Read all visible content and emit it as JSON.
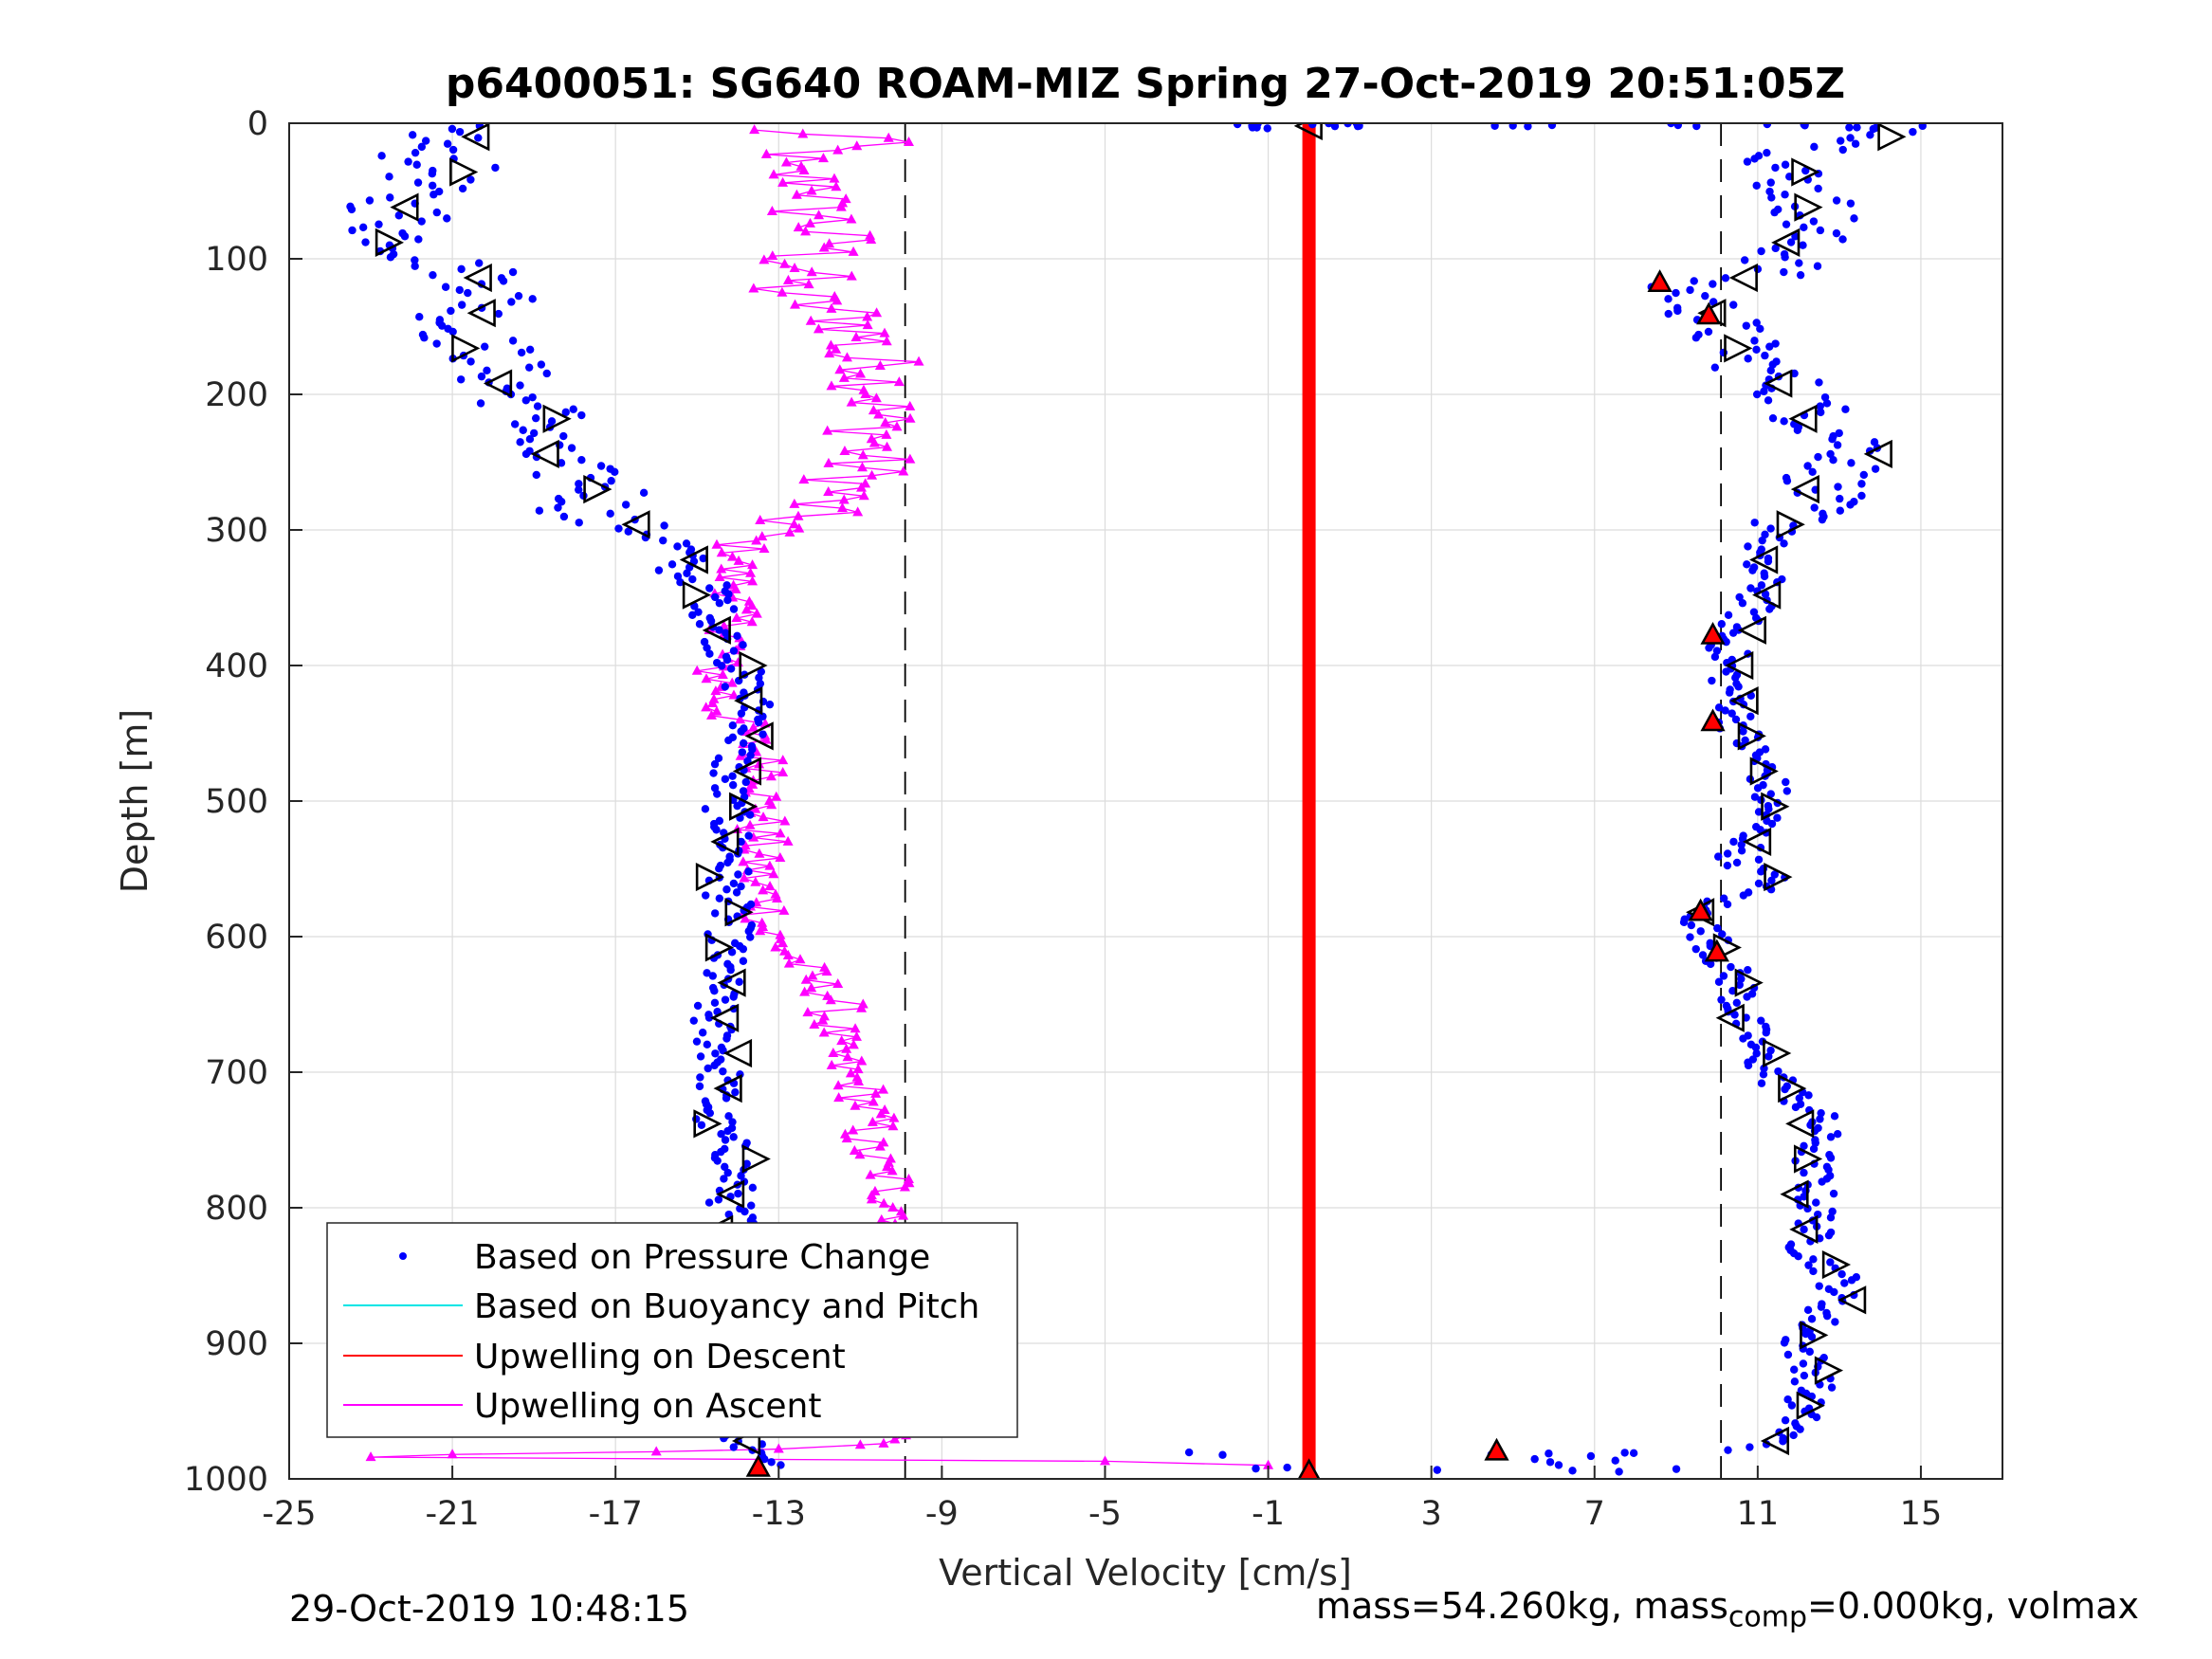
{
  "chart_data": {
    "type": "scatter",
    "title": "p6400051: SG640 ROAM-MIZ Spring 27-Oct-2019 20:51:05Z",
    "xlabel": "Vertical Velocity [cm/s]",
    "ylabel": "Depth [m]",
    "xlim": [
      -25,
      17
    ],
    "ylim": [
      1000,
      0
    ],
    "y_reversed": true,
    "grid": true,
    "legend_position": "bottom-left",
    "xticks": [
      "-25",
      "-21",
      "-17",
      "-13",
      "-9",
      "-5",
      "-1",
      "3",
      "7",
      "11",
      "15"
    ],
    "yticks": [
      "0",
      "100",
      "200",
      "300",
      "400",
      "500",
      "600",
      "700",
      "800",
      "900",
      "1000"
    ],
    "reference_lines": [
      {
        "style": "dashed",
        "color": "#000000",
        "x": -9.9
      },
      {
        "style": "dashed",
        "color": "#000000",
        "x": 10.1
      }
    ],
    "series": [
      {
        "name": "Based on Pressure Change",
        "color": "#0000ff",
        "marker": "dot",
        "descent_profile": [
          [
            2,
            -21.5
          ],
          [
            10,
            -21
          ],
          [
            20,
            -22
          ],
          [
            30,
            -21
          ],
          [
            40,
            -21.5
          ],
          [
            50,
            -22
          ],
          [
            60,
            -22.5
          ],
          [
            70,
            -22
          ],
          [
            80,
            -22.5
          ],
          [
            90,
            -22
          ],
          [
            100,
            -21.5
          ],
          [
            110,
            -20.5
          ],
          [
            120,
            -20
          ],
          [
            130,
            -19.8
          ],
          [
            140,
            -20.5
          ],
          [
            150,
            -21
          ],
          [
            160,
            -20.5
          ],
          [
            170,
            -20
          ],
          [
            180,
            -19.8
          ],
          [
            190,
            -19.8
          ],
          [
            200,
            -19.5
          ],
          [
            210,
            -19
          ],
          [
            220,
            -18.5
          ],
          [
            230,
            -19
          ],
          [
            240,
            -19.2
          ],
          [
            250,
            -18.5
          ],
          [
            260,
            -18
          ],
          [
            270,
            -17
          ],
          [
            280,
            -17.5
          ],
          [
            290,
            -17.8
          ],
          [
            300,
            -16.5
          ],
          [
            310,
            -15.5
          ],
          [
            320,
            -15.3
          ],
          [
            330,
            -15.5
          ],
          [
            340,
            -14.8
          ],
          [
            350,
            -14.5
          ],
          [
            360,
            -14.6
          ],
          [
            370,
            -14.5
          ],
          [
            380,
            -14.3
          ],
          [
            390,
            -14.2
          ],
          [
            400,
            -14
          ],
          [
            420,
            -13.8
          ],
          [
            440,
            -13.5
          ],
          [
            460,
            -14
          ],
          [
            480,
            -14.2
          ],
          [
            500,
            -14.3
          ],
          [
            520,
            -14.2
          ],
          [
            540,
            -14.1
          ],
          [
            560,
            -14.3
          ],
          [
            580,
            -14.2
          ],
          [
            600,
            -14.2
          ],
          [
            620,
            -14.4
          ],
          [
            640,
            -14.5
          ],
          [
            660,
            -14.7
          ],
          [
            680,
            -14.5
          ],
          [
            700,
            -14.4
          ],
          [
            720,
            -14.6
          ],
          [
            740,
            -14.6
          ],
          [
            760,
            -14.1
          ],
          [
            780,
            -14.1
          ],
          [
            800,
            -14.2
          ],
          [
            820,
            -13.9
          ],
          [
            840,
            -13.7
          ],
          [
            860,
            -13.6
          ],
          [
            880,
            -13.9
          ],
          [
            900,
            -14.1
          ],
          [
            920,
            -14.2
          ],
          [
            940,
            -14
          ],
          [
            960,
            -14
          ],
          [
            980,
            -13.7
          ],
          [
            992,
            -13.3
          ]
        ],
        "ascent_profile": [
          [
            992,
            7
          ],
          [
            985,
            5
          ],
          [
            978,
            11
          ],
          [
            970,
            11.5
          ],
          [
            960,
            12
          ],
          [
            950,
            12
          ],
          [
            940,
            12.2
          ],
          [
            930,
            12.4
          ],
          [
            920,
            12.4
          ],
          [
            910,
            12.2
          ],
          [
            900,
            12
          ],
          [
            890,
            12.3
          ],
          [
            880,
            12.6
          ],
          [
            870,
            12.8
          ],
          [
            860,
            13
          ],
          [
            850,
            13
          ],
          [
            840,
            12.5
          ],
          [
            830,
            12.2
          ],
          [
            820,
            12.3
          ],
          [
            810,
            12.5
          ],
          [
            800,
            12.4
          ],
          [
            790,
            12.4
          ],
          [
            780,
            12.4
          ],
          [
            770,
            12.3
          ],
          [
            760,
            12.4
          ],
          [
            750,
            12.5
          ],
          [
            740,
            12.5
          ],
          [
            730,
            12.4
          ],
          [
            720,
            12
          ],
          [
            710,
            11.6
          ],
          [
            700,
            11.3
          ],
          [
            690,
            11
          ],
          [
            680,
            10.9
          ],
          [
            670,
            10.8
          ],
          [
            660,
            10.6
          ],
          [
            650,
            10.5
          ],
          [
            640,
            10.6
          ],
          [
            630,
            10.4
          ],
          [
            620,
            10.2
          ],
          [
            610,
            10
          ],
          [
            600,
            9.8
          ],
          [
            590,
            9.6
          ],
          [
            580,
            9.6
          ],
          [
            570,
            10.4
          ],
          [
            560,
            11.5
          ],
          [
            550,
            10.8
          ],
          [
            540,
            10.5
          ],
          [
            530,
            10.8
          ],
          [
            520,
            11
          ],
          [
            510,
            11.2
          ],
          [
            500,
            11.2
          ],
          [
            490,
            11.3
          ],
          [
            480,
            11.2
          ],
          [
            470,
            11
          ],
          [
            460,
            10.8
          ],
          [
            450,
            10.6
          ],
          [
            440,
            10.5
          ],
          [
            430,
            10.5
          ],
          [
            420,
            10.4
          ],
          [
            410,
            10.3
          ],
          [
            400,
            10.2
          ],
          [
            390,
            10.3
          ],
          [
            380,
            10.2
          ],
          [
            370,
            10.5
          ],
          [
            360,
            10.8
          ],
          [
            350,
            11
          ],
          [
            340,
            11.2
          ],
          [
            330,
            11
          ],
          [
            320,
            10.8
          ],
          [
            310,
            11.2
          ],
          [
            300,
            11.8
          ],
          [
            290,
            12
          ],
          [
            280,
            12.3
          ],
          [
            270,
            12.6
          ],
          [
            260,
            12.8
          ],
          [
            250,
            13.3
          ],
          [
            240,
            13.6
          ],
          [
            230,
            13
          ],
          [
            220,
            12.5
          ],
          [
            210,
            12.2
          ],
          [
            200,
            12
          ],
          [
            190,
            11.5
          ],
          [
            180,
            11
          ],
          [
            170,
            10.8
          ],
          [
            160,
            10.3
          ],
          [
            150,
            10.1
          ],
          [
            140,
            9.8
          ],
          [
            130,
            9.5
          ],
          [
            120,
            9
          ],
          [
            110,
            11.5
          ],
          [
            100,
            11.7
          ],
          [
            90,
            12
          ],
          [
            80,
            12.2
          ],
          [
            70,
            12.5
          ],
          [
            60,
            12.4
          ],
          [
            50,
            12
          ],
          [
            40,
            11.8
          ],
          [
            30,
            11.5
          ],
          [
            20,
            12.5
          ],
          [
            10,
            14.5
          ],
          [
            2,
            15
          ]
        ]
      },
      {
        "name": "Based on Buoyancy and Pitch",
        "color": "#00e5e5",
        "marker": "line"
      },
      {
        "name": "Upwelling on Descent",
        "color": "#ff0000",
        "marker": "line",
        "x_constant": 0,
        "depth_range": [
          0,
          995
        ]
      },
      {
        "name": "Upwelling on Ascent",
        "color": "#ff00ff",
        "marker": "triangle",
        "profile": [
          [
            5,
            -14
          ],
          [
            10,
            -10.5
          ],
          [
            20,
            -12
          ],
          [
            30,
            -13.5
          ],
          [
            40,
            -12.5
          ],
          [
            50,
            -11.5
          ],
          [
            60,
            -12.5
          ],
          [
            70,
            -11.8
          ],
          [
            80,
            -12
          ],
          [
            90,
            -11.5
          ],
          [
            100,
            -12.5
          ],
          [
            110,
            -12.2
          ],
          [
            120,
            -13
          ],
          [
            130,
            -12.5
          ],
          [
            140,
            -11.5
          ],
          [
            150,
            -11
          ],
          [
            160,
            -10.8
          ],
          [
            170,
            -11.5
          ],
          [
            180,
            -10.2
          ],
          [
            190,
            -10.5
          ],
          [
            200,
            -10.3
          ],
          [
            210,
            -10.6
          ],
          [
            220,
            -10.7
          ],
          [
            230,
            -10.5
          ],
          [
            240,
            -10.8
          ],
          [
            250,
            -11
          ],
          [
            260,
            -11
          ],
          [
            270,
            -11.4
          ],
          [
            280,
            -12
          ],
          [
            290,
            -12.5
          ],
          [
            300,
            -13
          ],
          [
            310,
            -14
          ],
          [
            320,
            -13.8
          ],
          [
            330,
            -14.2
          ],
          [
            340,
            -14
          ],
          [
            350,
            -13.9
          ],
          [
            360,
            -14.2
          ],
          [
            370,
            -14.1
          ],
          [
            380,
            -14
          ],
          [
            390,
            -14.3
          ],
          [
            400,
            -14.6
          ],
          [
            410,
            -14.4
          ],
          [
            420,
            -14.3
          ],
          [
            430,
            -14.5
          ],
          [
            440,
            -14
          ],
          [
            450,
            -13.8
          ],
          [
            460,
            -13.6
          ],
          [
            470,
            -13.4
          ],
          [
            480,
            -13
          ],
          [
            490,
            -13.2
          ],
          [
            500,
            -13.5
          ],
          [
            510,
            -13.3
          ],
          [
            520,
            -13.5
          ],
          [
            530,
            -13.4
          ],
          [
            540,
            -13.6
          ],
          [
            550,
            -13.5
          ],
          [
            560,
            -13.6
          ],
          [
            570,
            -13.3
          ],
          [
            580,
            -13.2
          ],
          [
            590,
            -13.4
          ],
          [
            600,
            -13.2
          ],
          [
            610,
            -12.8
          ],
          [
            620,
            -12.5
          ],
          [
            630,
            -12.3
          ],
          [
            640,
            -11.8
          ],
          [
            650,
            -11.5
          ],
          [
            660,
            -11.8
          ],
          [
            670,
            -11.6
          ],
          [
            680,
            -11.8
          ],
          [
            690,
            -11.5
          ],
          [
            700,
            -11.4
          ],
          [
            710,
            -11
          ],
          [
            720,
            -10.9
          ],
          [
            730,
            -10.8
          ],
          [
            740,
            -10.7
          ],
          [
            750,
            -11
          ],
          [
            760,
            -10.8
          ],
          [
            770,
            -10.6
          ],
          [
            780,
            -10.2
          ],
          [
            790,
            -10.3
          ],
          [
            800,
            -10
          ],
          [
            810,
            -9.9
          ],
          [
            820,
            -10
          ],
          [
            830,
            -10.1
          ],
          [
            840,
            -10.3
          ],
          [
            850,
            -10.5
          ],
          [
            860,
            -10.8
          ],
          [
            870,
            -11
          ],
          [
            880,
            -11.2
          ],
          [
            890,
            -11
          ],
          [
            900,
            -10.7
          ],
          [
            910,
            -10.4
          ],
          [
            920,
            -10.1
          ],
          [
            930,
            -10
          ],
          [
            940,
            -9.9
          ],
          [
            950,
            -10
          ],
          [
            960,
            -10.1
          ],
          [
            970,
            -10.3
          ],
          [
            975,
            -11
          ],
          [
            978,
            -13
          ],
          [
            980,
            -16
          ],
          [
            982,
            -21
          ],
          [
            984,
            -23
          ],
          [
            987,
            -5
          ],
          [
            990,
            -1
          ]
        ]
      }
    ]
  },
  "footer": {
    "timestamp": "29-Oct-2019 10:48:15",
    "mass_text_pre": "mass=54.260kg, mass",
    "mass_text_sub": "comp",
    "mass_text_post": "=0.000kg, volmax"
  }
}
